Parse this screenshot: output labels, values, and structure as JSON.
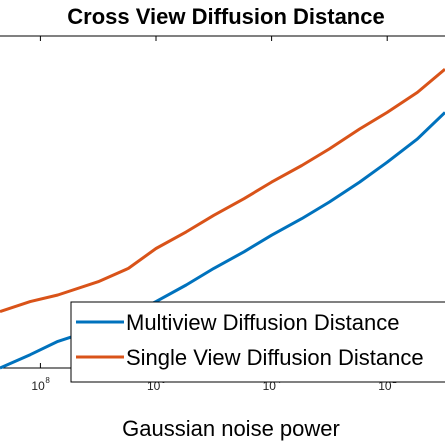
{
  "chart_data": {
    "type": "line",
    "title": "Cross View Diffusion Distance",
    "xlabel": "Gaussian noise power",
    "ylabel": "",
    "x_scale": "log",
    "x_reversed": true,
    "x_ticks": [
      {
        "value": 100000000,
        "base": "10",
        "exp": "8"
      },
      {
        "value": 1000000,
        "base": "10",
        "exp": "6"
      },
      {
        "value": 10000,
        "base": "10",
        "exp": "4"
      },
      {
        "value": 100,
        "base": "10",
        "exp": "2"
      }
    ],
    "xlim": [
      500000000,
      10
    ],
    "ylim": [
      0,
      1
    ],
    "grid": false,
    "legend_position": "bottom-right",
    "series": [
      {
        "name": "Multiview Diffusion Distance",
        "color": "#0072BD",
        "x": [
          500000000,
          150000000,
          50000000,
          10000000,
          3000000,
          1000000,
          300000,
          100000,
          30000,
          10000,
          3000,
          1000,
          300,
          100,
          30,
          10
        ],
        "y": [
          0.0,
          0.04,
          0.08,
          0.12,
          0.16,
          0.2,
          0.25,
          0.3,
          0.35,
          0.4,
          0.45,
          0.5,
          0.56,
          0.62,
          0.69,
          0.77
        ]
      },
      {
        "name": "Single View Diffusion Distance",
        "color": "#D95319",
        "x": [
          500000000,
          150000000,
          50000000,
          10000000,
          3000000,
          1000000,
          300000,
          100000,
          30000,
          10000,
          3000,
          1000,
          300,
          100,
          30,
          10
        ],
        "y": [
          0.17,
          0.2,
          0.22,
          0.26,
          0.3,
          0.36,
          0.41,
          0.46,
          0.51,
          0.56,
          0.61,
          0.66,
          0.72,
          0.77,
          0.83,
          0.9
        ]
      }
    ]
  }
}
